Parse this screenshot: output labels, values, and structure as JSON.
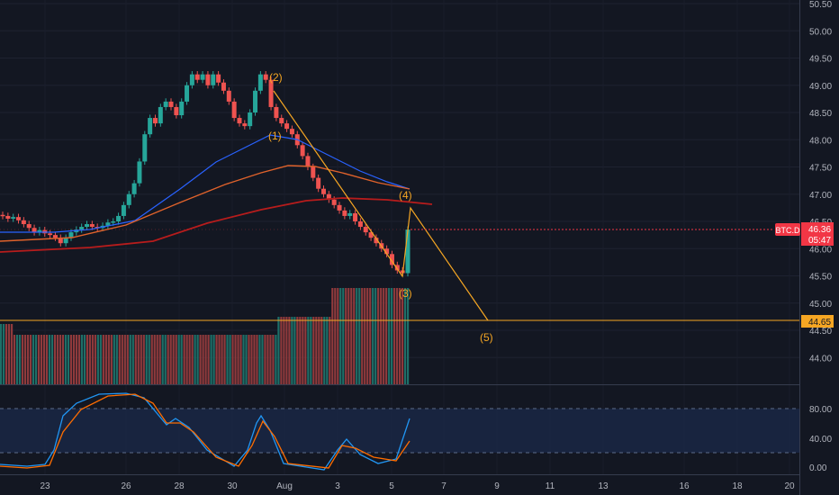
{
  "symbol": "BTC.D",
  "last_price": "46.36",
  "countdown": "05:47",
  "hline_level": "44.65",
  "price_axis": [
    "50.50",
    "50.00",
    "49.50",
    "49.00",
    "48.50",
    "48.00",
    "47.50",
    "47.00",
    "46.50",
    "46.00",
    "45.50",
    "45.00",
    "44.50",
    "44.00"
  ],
  "osc_axis": [
    "80.00",
    "40.00",
    "0.00"
  ],
  "time_axis": [
    "23",
    "26",
    "28",
    "30",
    "Aug",
    "3",
    "5",
    "7",
    "9",
    "11",
    "13",
    "16",
    "18",
    "20"
  ],
  "wave_labels": [
    "(1)",
    "(2)",
    "(3)",
    "(4)",
    "(5)"
  ],
  "colors": {
    "background": "#131722",
    "up": "#26a69a",
    "down": "#ef5350",
    "vol_up": "#1e6f68",
    "vol_down": "#8f3a3c",
    "wave": "#f5a623",
    "ma_blue": "#2962ff",
    "ma_orange": "#e0622b",
    "ma_red": "#b71c1c",
    "stoch_k": "#2196f3",
    "stoch_d": "#ff6d00",
    "price_tag": "#f23645"
  }
}
